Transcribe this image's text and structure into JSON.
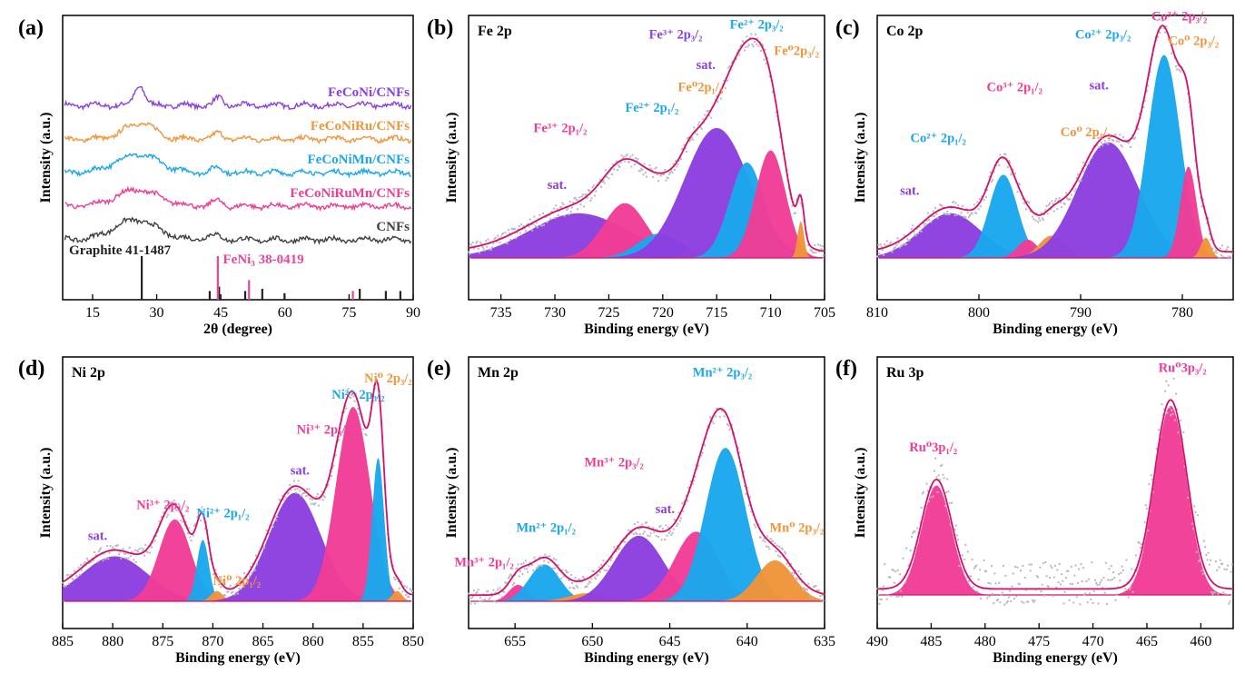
{
  "colors": {
    "purple": "#8c3fe0",
    "pink": "#ef3d96",
    "blue": "#1aa7ec",
    "orange": "#f0953a",
    "gray": "#404040",
    "envelope": "#d4106e",
    "raw": "#b9b9b9",
    "ref_black": "#222222",
    "ref_pink": "#e8459a"
  },
  "chart_data": [
    {
      "id": "a",
      "type": "line",
      "panel_label": "(a)",
      "xlabel": "2θ (degree)",
      "ylabel": "Intensity (a.u.)",
      "xlim": [
        8,
        90
      ],
      "xticks": [
        15,
        30,
        45,
        60,
        75,
        90
      ],
      "series": [
        {
          "name": "FeCoNi/CNFs",
          "color": "purple",
          "offset": 4,
          "bumps": [
            [
              26,
              0.55,
              1.2
            ],
            [
              44.5,
              0.2,
              1.0
            ]
          ]
        },
        {
          "name": "FeCoNiRu/CNFs",
          "color": "orange",
          "offset": 3,
          "bumps": [
            [
              26,
              0.45,
              3.5
            ],
            [
              44.5,
              0.15,
              1.2
            ]
          ]
        },
        {
          "name": "FeCoNiMn/CNFs",
          "color": "blue",
          "offset": 2,
          "bumps": [
            [
              25.5,
              0.5,
              5.0
            ],
            [
              44,
              0.12,
              1.5
            ]
          ]
        },
        {
          "name": "FeCoNiRuMn/CNFs",
          "color": "pink",
          "offset": 1,
          "bumps": [
            [
              25.5,
              0.45,
              5.0
            ],
            [
              44,
              0.15,
              1.2
            ]
          ]
        },
        {
          "name": "CNFs",
          "color": "gray",
          "offset": 0,
          "bumps": [
            [
              25,
              0.55,
              5.0
            ],
            [
              43,
              0.12,
              2.0
            ]
          ]
        }
      ],
      "reference_patterns": [
        {
          "name": "Graphite 41-1487",
          "color": "ref_black",
          "peaks": [
            [
              26.5,
              1.0
            ],
            [
              42.4,
              0.2
            ],
            [
              44.6,
              0.3
            ],
            [
              50.7,
              0.2
            ],
            [
              54.7,
              0.25
            ],
            [
              59.9,
              0.15
            ],
            [
              77.5,
              0.25
            ],
            [
              83.6,
              0.2
            ],
            [
              87,
              0.2
            ]
          ]
        },
        {
          "name": "FeNi₃ 38-0419",
          "color": "ref_pink",
          "peaks": [
            [
              44.3,
              1.0
            ],
            [
              51.6,
              0.45
            ],
            [
              75.9,
              0.2
            ]
          ]
        }
      ]
    },
    {
      "id": "b",
      "type": "area",
      "panel_label": "(b)",
      "title": "Fe 2p",
      "xlabel": "Binding energy (eV)",
      "ylabel": "Intensity (a.u.)",
      "xlim": [
        738,
        705
      ],
      "xticks": [
        735,
        730,
        725,
        720,
        715,
        710,
        705
      ],
      "ylim": [
        0,
        1.15
      ],
      "background": [
        [
          738,
          0
        ],
        [
          705,
          0
        ]
      ],
      "peaks": [
        {
          "name": "sat.",
          "color": "purple",
          "center": 727.8,
          "height": 0.22,
          "width": 4.6
        },
        {
          "name": "Fe³⁺ 2p1/2",
          "color": "pink",
          "center": 723.5,
          "height": 0.27,
          "width": 2.0
        },
        {
          "name": "Fe²⁺ 2p1/2",
          "color": "blue",
          "center": 720.3,
          "height": 0.12,
          "width": 2.0
        },
        {
          "name": "Fe⁰ 2p1/3",
          "color": "orange",
          "center": 717.5,
          "height": 0.04,
          "width": 0.7
        },
        {
          "name": "sat.",
          "color": "purple",
          "center": 715.0,
          "height": 0.64,
          "width": 3.0
        },
        {
          "name": "Fe²⁺ 2p3/2",
          "color": "blue",
          "center": 712.2,
          "height": 0.47,
          "width": 1.6
        },
        {
          "name": "Fe³⁺ 2p3/2",
          "color": "pink",
          "center": 710.0,
          "height": 0.53,
          "width": 1.4
        },
        {
          "name": "Fe⁰ 2p3/2",
          "color": "orange",
          "center": 707.2,
          "height": 0.18,
          "width": 0.3
        }
      ],
      "annotations": [
        {
          "text": "Fe³⁺ 2p₁/₂",
          "x": 729.5,
          "y": 0.62,
          "color": "pink"
        },
        {
          "text": "Fe²⁺ 2p₁/₂",
          "x": 721.0,
          "y": 0.72,
          "color": "blue"
        },
        {
          "text": "Fe⁰2p₁/₃",
          "x": 716.5,
          "y": 0.82,
          "color": "orange"
        },
        {
          "text": "sat.",
          "x": 729.8,
          "y": 0.34,
          "color": "purple"
        },
        {
          "text": "sat.",
          "x": 716.0,
          "y": 0.93,
          "color": "purple"
        },
        {
          "text": "Fe³⁺ 2p₃/₂",
          "x": 718.8,
          "y": 1.08,
          "color": "purple"
        },
        {
          "text": "Fe²⁺ 2p₃/₂",
          "x": 711.3,
          "y": 1.13,
          "color": "blue"
        },
        {
          "text": "Fe⁰2p₃/₂",
          "x": 707.6,
          "y": 1.0,
          "color": "orange"
        }
      ]
    },
    {
      "id": "c",
      "type": "area",
      "panel_label": "(c)",
      "title": "Co 2p",
      "xlabel": "Binding energy (eV)",
      "ylabel": "Intensity (a.u.)",
      "xlim": [
        810,
        775
      ],
      "xticks": [
        810,
        800,
        790,
        780
      ],
      "ylim": [
        0,
        1.15
      ],
      "background": [
        [
          810,
          0
        ],
        [
          775,
          0
        ]
      ],
      "peaks": [
        {
          "name": "sat.",
          "color": "purple",
          "center": 802.8,
          "height": 0.22,
          "width": 3.0
        },
        {
          "name": "Co²⁺ 2p1/2",
          "color": "blue",
          "center": 797.6,
          "height": 0.41,
          "width": 1.4
        },
        {
          "name": "Co³⁺ 2p1/2",
          "color": "pink",
          "center": 795.2,
          "height": 0.09,
          "width": 1.0
        },
        {
          "name": "Co⁰ 2p1/2",
          "color": "orange",
          "center": 792.9,
          "height": 0.11,
          "width": 1.2
        },
        {
          "name": "sat.",
          "color": "purple",
          "center": 787.3,
          "height": 0.57,
          "width": 3.0
        },
        {
          "name": "Co²⁺ 2p3/2",
          "color": "blue",
          "center": 781.8,
          "height": 1.0,
          "width": 1.6
        },
        {
          "name": "Co³⁺ 2p3/2",
          "color": "pink",
          "center": 779.4,
          "height": 0.45,
          "width": 0.8
        },
        {
          "name": "Co⁰ 2p3/2",
          "color": "orange",
          "center": 777.7,
          "height": 0.1,
          "width": 0.5
        }
      ],
      "annotations": [
        {
          "text": "sat.",
          "x": 806.8,
          "y": 0.31,
          "color": "purple"
        },
        {
          "text": "Co²⁺ 2p₁/₂",
          "x": 804.0,
          "y": 0.57,
          "color": "blue"
        },
        {
          "text": "Co³⁺ 2p₁/₂",
          "x": 796.5,
          "y": 0.82,
          "color": "pink"
        },
        {
          "text": "Co⁰ 2p₁/₂",
          "x": 789.5,
          "y": 0.6,
          "color": "orange"
        },
        {
          "text": "sat.",
          "x": 788.2,
          "y": 0.83,
          "color": "purple"
        },
        {
          "text": "Co²⁺ 2p₃/₂",
          "x": 787.8,
          "y": 1.08,
          "color": "blue"
        },
        {
          "text": "Co³⁺ 2p₃/₂",
          "x": 780.3,
          "y": 1.17,
          "color": "pink"
        },
        {
          "text": "Co⁰ 2p₃/₂",
          "x": 778.9,
          "y": 1.05,
          "color": "orange"
        }
      ]
    },
    {
      "id": "d",
      "type": "area",
      "panel_label": "(d)",
      "title": "Ni 2p",
      "xlabel": "Binding energy (eV)",
      "ylabel": "Intensity (a.u.)",
      "xlim": [
        885,
        850
      ],
      "xticks": [
        885,
        880,
        875,
        870,
        865,
        860,
        855,
        850
      ],
      "ylim": [
        0,
        1.15
      ],
      "background": [
        [
          885,
          0.04
        ],
        [
          850,
          0.04
        ]
      ],
      "peaks": [
        {
          "name": "sat.",
          "color": "purple",
          "center": 879.8,
          "height": 0.22,
          "width": 3.3
        },
        {
          "name": "Ni³⁺ 2p1/2",
          "color": "pink",
          "center": 873.8,
          "height": 0.4,
          "width": 1.6
        },
        {
          "name": "Ni²⁺ 2p1/2",
          "color": "blue",
          "center": 871.0,
          "height": 0.3,
          "width": 0.6
        },
        {
          "name": "Ni⁰ 2p1/2",
          "color": "orange",
          "center": 869.6,
          "height": 0.05,
          "width": 0.6
        },
        {
          "name": "sat.",
          "color": "purple",
          "center": 861.8,
          "height": 0.53,
          "width": 2.6
        },
        {
          "name": "Ni³⁺ 2p3/2",
          "color": "pink",
          "center": 856.0,
          "height": 0.95,
          "width": 1.7
        },
        {
          "name": "Ni²⁺ 2p3/2",
          "color": "blue",
          "center": 853.5,
          "height": 0.7,
          "width": 0.6
        },
        {
          "name": "Ni⁰ 2p3/2",
          "color": "orange",
          "center": 851.6,
          "height": 0.05,
          "width": 0.5
        }
      ],
      "annotations": [
        {
          "text": "sat.",
          "x": 881.5,
          "y": 0.3,
          "color": "purple"
        },
        {
          "text": "Ni³⁺ 2p₁/₂",
          "x": 875.0,
          "y": 0.45,
          "color": "pink"
        },
        {
          "text": "Ni²⁺ 2p₁/₂",
          "x": 869.0,
          "y": 0.41,
          "color": "blue"
        },
        {
          "text": "Ni⁰ 2p₁/₂",
          "x": 867.6,
          "y": 0.08,
          "color": "orange"
        },
        {
          "text": "sat.",
          "x": 861.3,
          "y": 0.62,
          "color": "purple"
        },
        {
          "text": "Ni³⁺ 2p₃/₂",
          "x": 859.0,
          "y": 0.82,
          "color": "pink"
        },
        {
          "text": "Ni²⁺ 2p₃/₂",
          "x": 855.5,
          "y": 0.99,
          "color": "blue"
        },
        {
          "text": "Ni⁰ 2p₃/₂",
          "x": 852.5,
          "y": 1.07,
          "color": "orange"
        }
      ]
    },
    {
      "id": "e",
      "type": "area",
      "panel_label": "(e)",
      "title": "Mn 2p",
      "xlabel": "Binding energy (eV)",
      "ylabel": "Intensity (a.u.)",
      "xlim": [
        658,
        635
      ],
      "xticks": [
        655,
        650,
        645,
        640,
        635
      ],
      "ylim": [
        0,
        1.15
      ],
      "background": [
        [
          658,
          0
        ],
        [
          635,
          0
        ]
      ],
      "peaks": [
        {
          "name": "Mn³⁺ 2p1/2",
          "color": "pink",
          "center": 654.8,
          "height": 0.08,
          "width": 0.6
        },
        {
          "name": "Mn²⁺ 2p1/2",
          "color": "blue",
          "center": 653.1,
          "height": 0.18,
          "width": 1.0
        },
        {
          "name": "Mn⁰ 2p1/2",
          "color": "orange",
          "center": 650.3,
          "height": 0.04,
          "width": 1.2
        },
        {
          "name": "sat.",
          "color": "purple",
          "center": 647.0,
          "height": 0.32,
          "width": 1.6
        },
        {
          "name": "Mn³⁺ 2p3/2",
          "color": "pink",
          "center": 643.3,
          "height": 0.34,
          "width": 1.4
        },
        {
          "name": "Mn²⁺ 2p3/2",
          "color": "blue",
          "center": 641.4,
          "height": 0.75,
          "width": 1.3
        },
        {
          "name": "Mn⁰ 2p3/2",
          "color": "orange",
          "center": 638.2,
          "height": 0.2,
          "width": 1.2
        }
      ],
      "annotations": [
        {
          "text": "Mn³⁺ 2p₁/₂",
          "x": 657.0,
          "y": 0.17,
          "color": "pink"
        },
        {
          "text": "Mn²⁺ 2p₁/₂",
          "x": 653.0,
          "y": 0.34,
          "color": "blue"
        },
        {
          "text": "sat.",
          "x": 645.3,
          "y": 0.43,
          "color": "purple"
        },
        {
          "text": "Mn³⁺ 2p₃/₂",
          "x": 648.6,
          "y": 0.66,
          "color": "pink"
        },
        {
          "text": "Mn²⁺ 2p₃/₂",
          "x": 641.6,
          "y": 1.1,
          "color": "blue"
        },
        {
          "text": "Mn⁰ 2p₃/₂",
          "x": 636.8,
          "y": 0.34,
          "color": "orange"
        }
      ]
    },
    {
      "id": "f",
      "type": "area",
      "panel_label": "(f)",
      "title": "Ru 3p",
      "xlabel": "Binding energy (eV)",
      "ylabel": "Intensity (a.u.)",
      "xlim": [
        490,
        457
      ],
      "xticks": [
        490,
        485,
        480,
        475,
        470,
        465,
        460
      ],
      "ylim": [
        0,
        1.15
      ],
      "background": [
        [
          490,
          0
        ],
        [
          457,
          0
        ]
      ],
      "peaks": [
        {
          "name": "Ru⁰ 3p1/2",
          "color": "pink",
          "center": 484.5,
          "height": 0.55,
          "width": 1.4
        },
        {
          "name": "Ru⁰ 3p3/2",
          "color": "pink",
          "center": 462.8,
          "height": 0.95,
          "width": 1.5
        }
      ],
      "annotations": [
        {
          "text": "Ru⁰3p₁/₂",
          "x": 484.8,
          "y": 0.72,
          "color": "pink"
        },
        {
          "text": "Ru⁰3p₃/₂",
          "x": 461.7,
          "y": 1.12,
          "color": "pink"
        }
      ]
    }
  ]
}
